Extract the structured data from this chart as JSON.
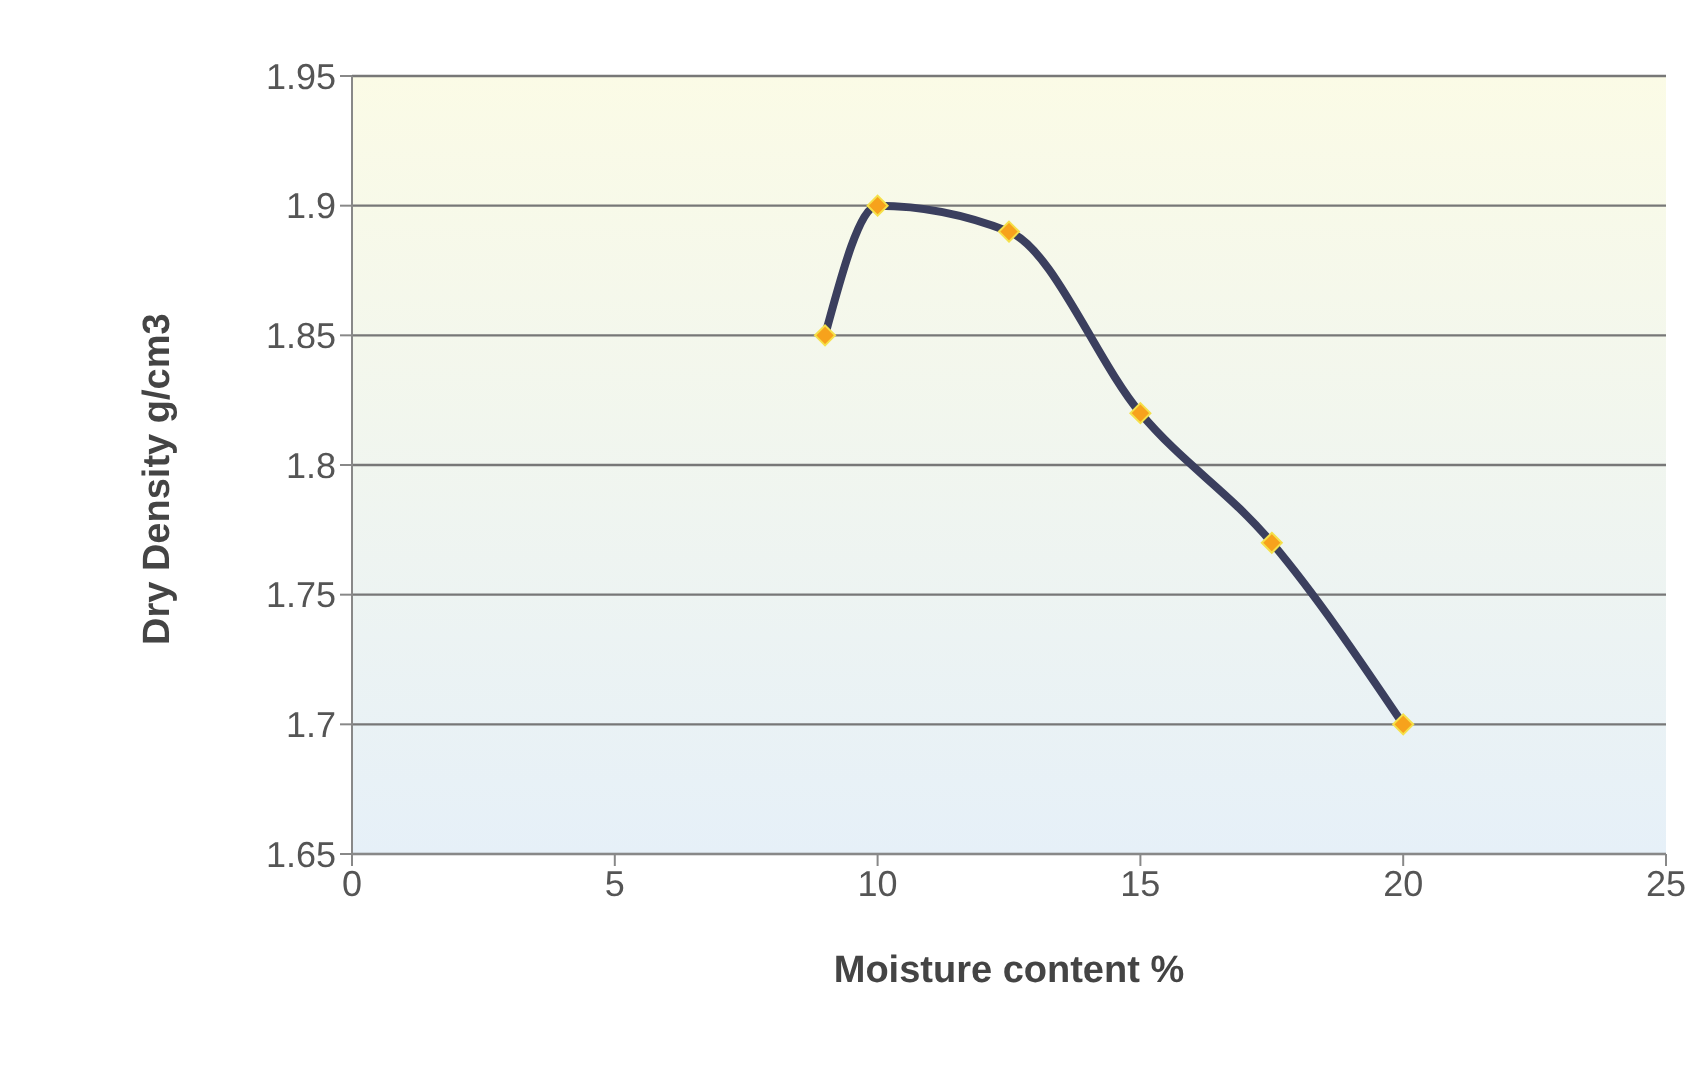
{
  "chart_data": {
    "type": "line",
    "xlabel": "Moisture content %",
    "ylabel": "Dry Density g/cm3",
    "series": [
      {
        "color": "#3b3f5e",
        "x": [
          9,
          10,
          12.5,
          15,
          17.5,
          20
        ],
        "values": [
          1.85,
          1.9,
          1.89,
          1.82,
          1.77,
          1.7
        ]
      }
    ],
    "xlim": [
      0,
      25
    ],
    "xticks": [
      0,
      5,
      10,
      15,
      20,
      25
    ],
    "ylim": [
      1.65,
      1.95
    ],
    "yticks": [
      1.65,
      1.7,
      1.75,
      1.8,
      1.85,
      1.9,
      1.95
    ],
    "grid": "y",
    "legend": false,
    "marker": "diamond",
    "line_style": "solid"
  }
}
